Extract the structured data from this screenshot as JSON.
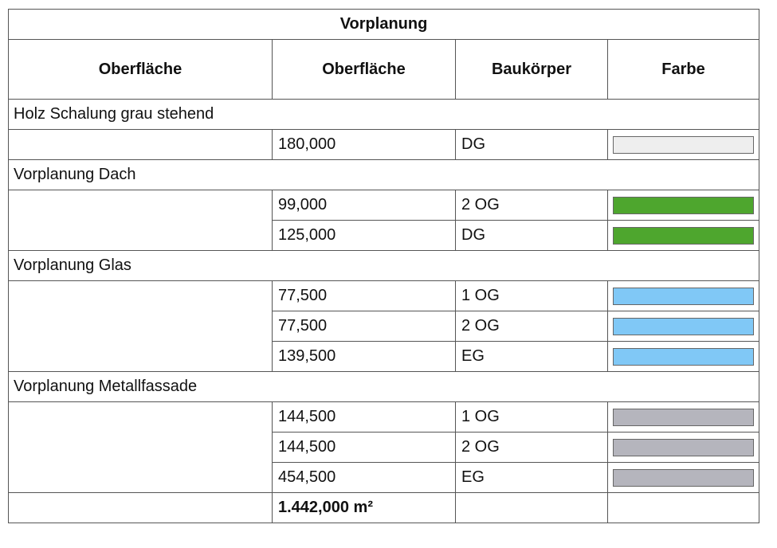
{
  "table": {
    "title": "Vorplanung",
    "headers": [
      "Oberfläche",
      "Oberfläche",
      "Baukörper",
      "Farbe"
    ],
    "groups": [
      {
        "name": "Holz Schalung grau stehend",
        "rows": [
          {
            "area": "180,000",
            "building": "DG",
            "color": "#eeeeee"
          }
        ]
      },
      {
        "name": "Vorplanung Dach",
        "rows": [
          {
            "area": "99,000",
            "building": "2 OG",
            "color": "#4ea62e"
          },
          {
            "area": "125,000",
            "building": "DG",
            "color": "#4ea62e"
          }
        ]
      },
      {
        "name": "Vorplanung Glas",
        "rows": [
          {
            "area": "77,500",
            "building": "1 OG",
            "color": "#80c8f6"
          },
          {
            "area": "77,500",
            "building": "2 OG",
            "color": "#80c8f6"
          },
          {
            "area": "139,500",
            "building": "EG",
            "color": "#80c8f6"
          }
        ]
      },
      {
        "name": "Vorplanung Metallfassade",
        "rows": [
          {
            "area": "144,500",
            "building": "1 OG",
            "color": "#b5b5bd"
          },
          {
            "area": "144,500",
            "building": "2 OG",
            "color": "#b5b5bd"
          },
          {
            "area": "454,500",
            "building": "EG",
            "color": "#b5b5bd"
          }
        ]
      }
    ],
    "total": "1.442,000 m²"
  }
}
